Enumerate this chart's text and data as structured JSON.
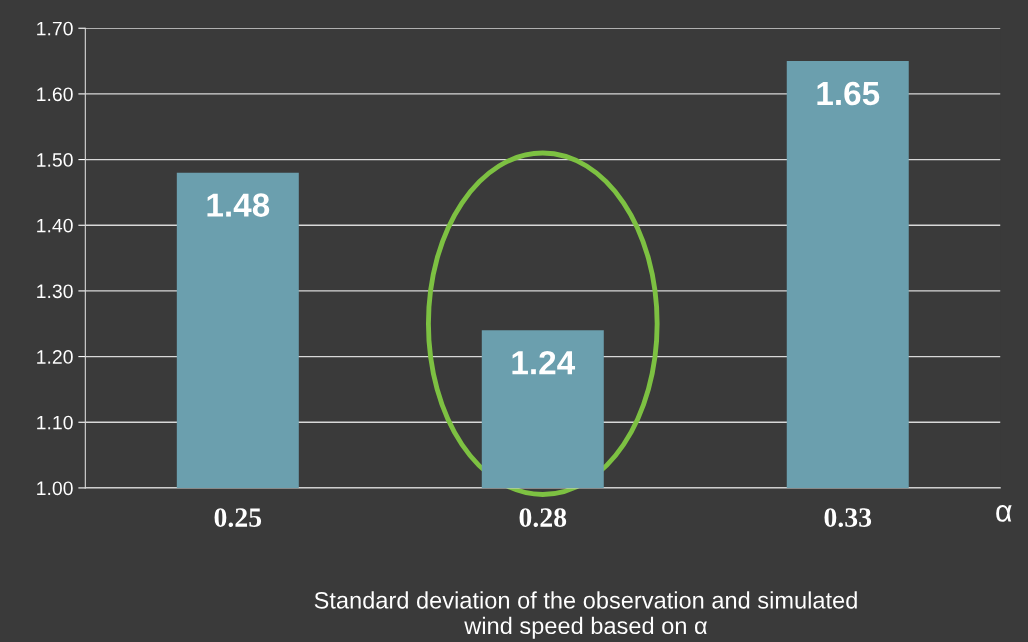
{
  "chart_data": {
    "type": "bar",
    "xlabel": "α",
    "categories": [
      "0.25",
      "0.28",
      "0.33"
    ],
    "values": [
      1.48,
      1.24,
      1.65
    ],
    "color": "#6b9fae",
    "ylim": [
      1.0,
      1.7
    ],
    "yticks": [
      {
        "value": 1.0,
        "label": "1.00"
      },
      {
        "value": 1.1,
        "label": "1.10"
      },
      {
        "value": 1.2,
        "label": "1.20"
      },
      {
        "value": 1.3,
        "label": "1.30"
      },
      {
        "value": 1.4,
        "label": "1.40"
      },
      {
        "value": 1.5,
        "label": "1.50"
      },
      {
        "value": 1.6,
        "label": "1.60"
      },
      {
        "value": 1.7,
        "label": "1.70"
      }
    ],
    "grid": "y",
    "data_labels": true,
    "annotations": [
      "Standard deviation of the observation and simulated\nwind speed based on α"
    ]
  }
}
